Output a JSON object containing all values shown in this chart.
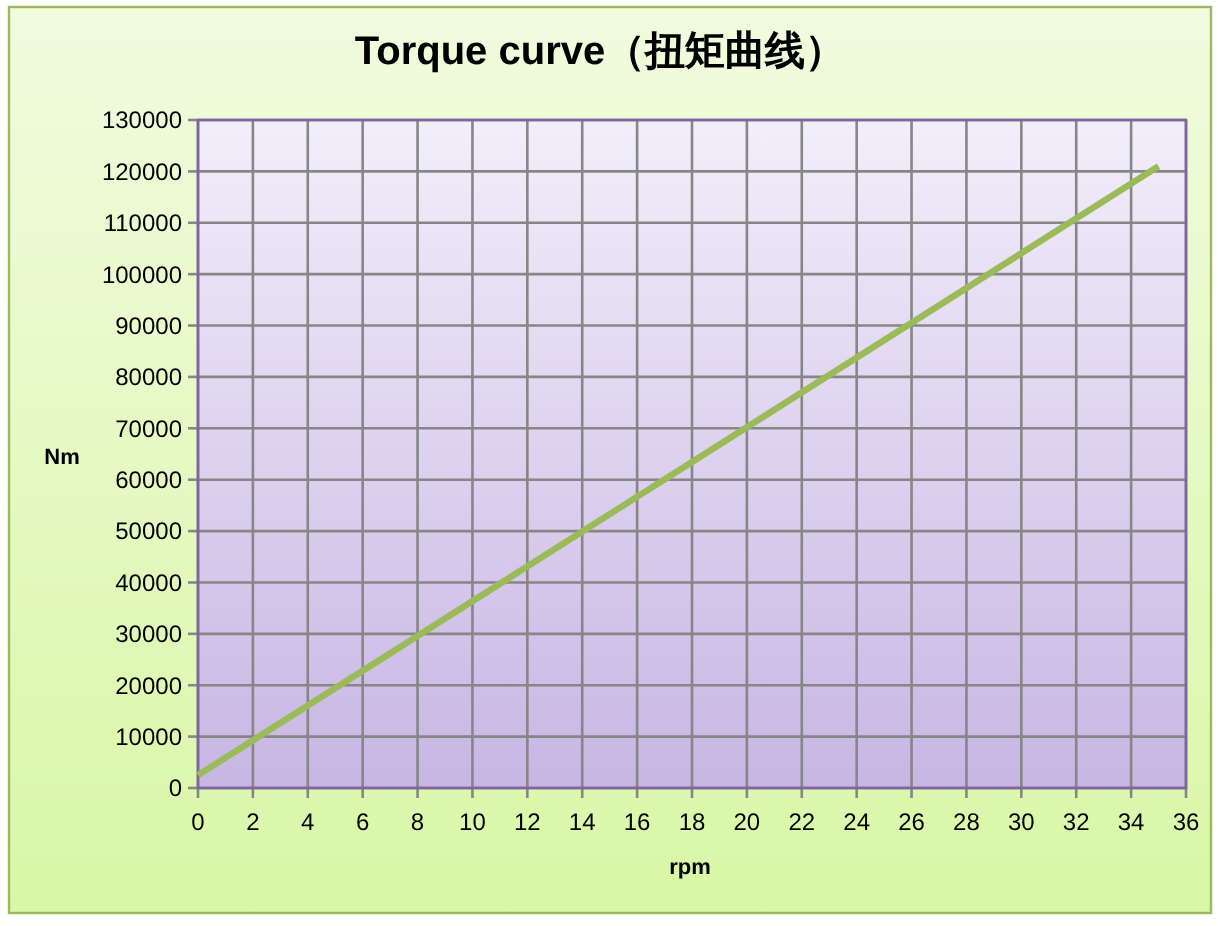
{
  "chart_data": {
    "type": "line",
    "title": "Torque curve（扭矩曲线）",
    "xlabel": "rpm",
    "ylabel": "Nm",
    "x": [
      0,
      35
    ],
    "values": [
      2500,
      121000
    ],
    "color": "#9bbb59",
    "xlim": [
      0,
      36
    ],
    "xticks": [
      0,
      2,
      4,
      6,
      8,
      10,
      12,
      14,
      16,
      18,
      20,
      22,
      24,
      26,
      28,
      30,
      32,
      34,
      36
    ],
    "ylim": [
      0,
      130000
    ],
    "yticks": [
      0,
      10000,
      20000,
      30000,
      40000,
      50000,
      60000,
      70000,
      80000,
      90000,
      100000,
      110000,
      120000,
      130000
    ],
    "grid": true
  }
}
